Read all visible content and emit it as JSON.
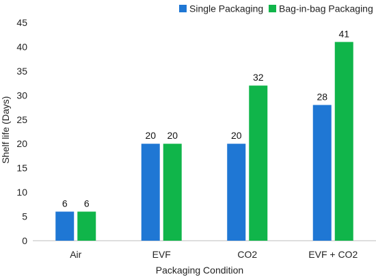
{
  "chart_data": {
    "type": "bar",
    "title": "",
    "xlabel": "Packaging Condition",
    "ylabel": "Shelf life (Days)",
    "ylim": [
      0,
      45
    ],
    "yticks": [
      0,
      5,
      10,
      15,
      20,
      25,
      30,
      35,
      40,
      45
    ],
    "categories": [
      "Air",
      "EVF",
      "CO2",
      "EVF + CO2"
    ],
    "series": [
      {
        "name": "Single Packaging",
        "color": "#1f77d4",
        "values": [
          6,
          20,
          20,
          28
        ]
      },
      {
        "name": "Bag-in-bag Packaging",
        "color": "#10b54a",
        "values": [
          6,
          20,
          32,
          41
        ]
      }
    ],
    "legend_position": "top-right",
    "grid": false
  }
}
